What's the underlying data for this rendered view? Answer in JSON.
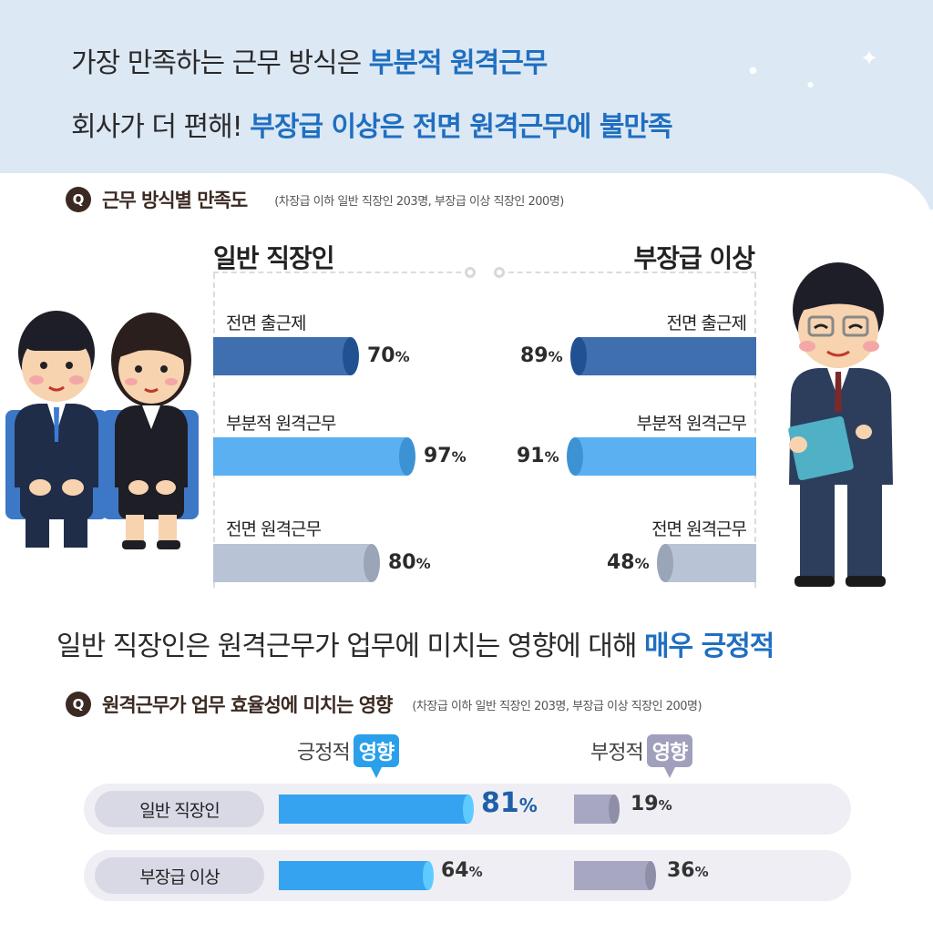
{
  "header": {
    "line1_prefix": "가장 만족하는 근무 방식은 ",
    "line1_highlight": "부분적 원격근무",
    "line2_prefix": "회사가 더 편해! ",
    "line2_highlight": "부장급 이상은 전면 원격근무에 불만족"
  },
  "section1": {
    "q_badge": "Q",
    "title": "근무 방식별 만족도",
    "note": "(차장급 이하 일반 직장인 203명, 부장급 이상 직장인 200명)",
    "left_group": "일반 직장인",
    "right_group": "부장급 이상"
  },
  "section2": {
    "subhead_prefix": "일반 직장인은 원격근무가 업무에 미치는 영향에 대해 ",
    "subhead_highlight": "매우 긍정적",
    "q_badge": "Q",
    "title": "원격근무가 업무 효율성에 미치는 영향",
    "note": "(차장급 이하 일반 직장인 203명, 부장급 이상 직장인 200명)",
    "pos_prefix": "긍정적",
    "pos_pill": "영향",
    "neg_prefix": "부정적",
    "neg_pill": "영향"
  },
  "percent_sign": "%",
  "colors": {
    "header_bg": "#dde8f5",
    "accent": "#1f6fc0",
    "bar_full_office": "#3f6fae",
    "bar_partial_remote": "#5bb0f2",
    "bar_full_remote": "#b8c3d6",
    "bar_positive": "#35a3ef",
    "bar_negative": "#a7a7c2"
  },
  "chart_data": [
    {
      "type": "bar",
      "title": "근무 방식별 만족도",
      "categories": [
        "전면 출근제",
        "부분적 원격근무",
        "전면 원격근무"
      ],
      "series": [
        {
          "name": "일반 직장인",
          "values": [
            70,
            97,
            80
          ]
        },
        {
          "name": "부장급 이상",
          "values": [
            89,
            91,
            48
          ]
        }
      ],
      "unit": "%",
      "ylim": [
        0,
        100
      ]
    },
    {
      "type": "bar",
      "title": "원격근무가 업무 효율성에 미치는 영향",
      "categories": [
        "일반 직장인",
        "부장급 이상"
      ],
      "series": [
        {
          "name": "긍정적 영향",
          "values": [
            81,
            64
          ]
        },
        {
          "name": "부정적 영향",
          "values": [
            19,
            36
          ]
        }
      ],
      "unit": "%",
      "ylim": [
        0,
        100
      ]
    }
  ]
}
